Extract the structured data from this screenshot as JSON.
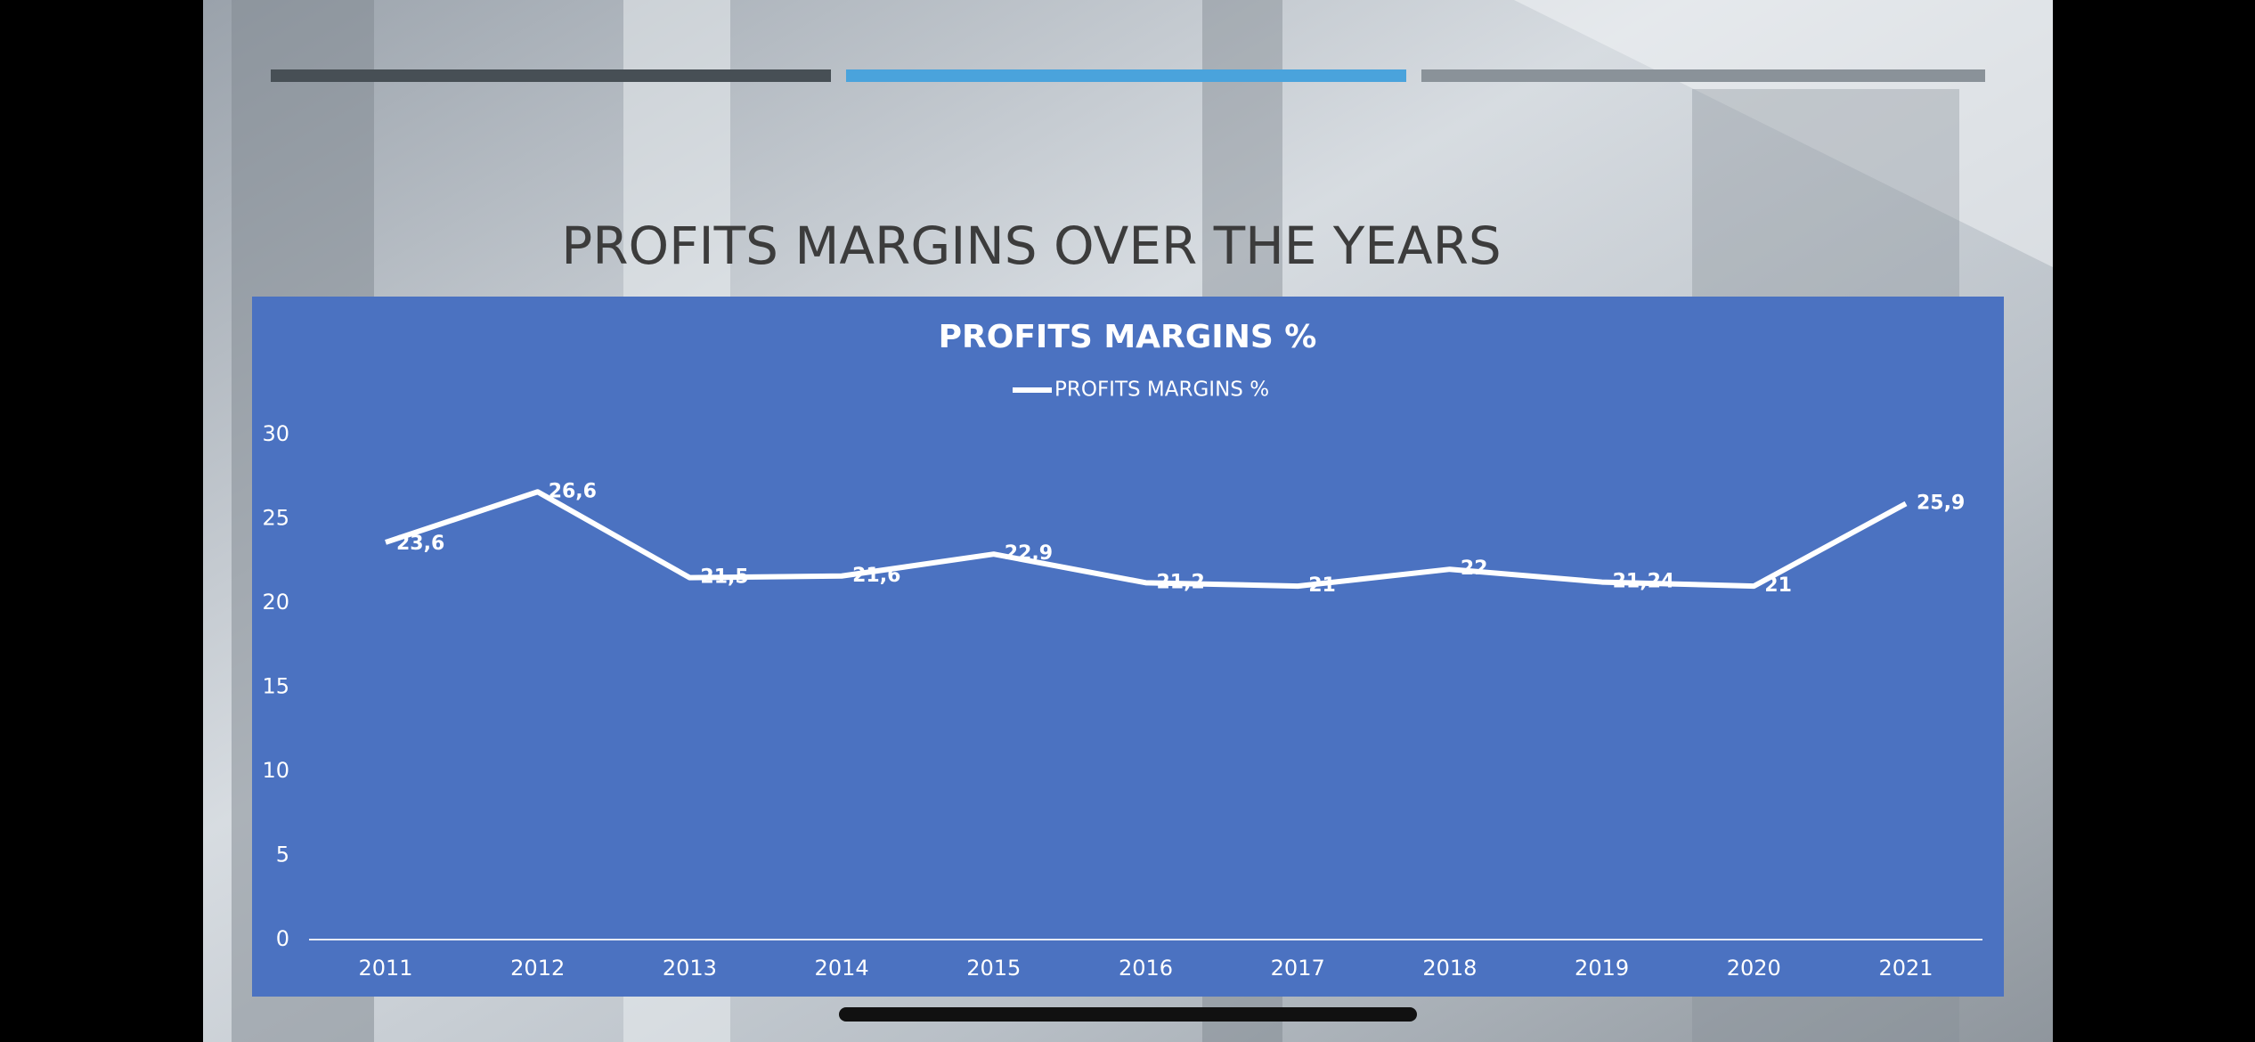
{
  "title": "PROFITS MARGINS OVER THE YEARS",
  "chart_data": {
    "type": "line",
    "title": "PROFITS MARGINS %",
    "categories": [
      "2011",
      "2012",
      "2013",
      "2014",
      "2015",
      "2016",
      "2017",
      "2018",
      "2019",
      "2020",
      "2021"
    ],
    "series": [
      {
        "name": "PROFITS MARGINS %",
        "color": "#ffffff",
        "values": [
          23.6,
          26.6,
          21.5,
          21.6,
          22.9,
          21.2,
          21,
          22,
          21.24,
          21,
          25.9
        ],
        "value_labels": [
          "23,6",
          "26,6",
          "21,5",
          "21,6",
          "22,9",
          "21,2",
          "21",
          "22",
          "21,24",
          "21",
          "25,9"
        ]
      }
    ],
    "ylim": [
      0,
      30
    ],
    "yticks": [
      0,
      5,
      10,
      15,
      20,
      25,
      30
    ],
    "grid": false,
    "legend": "top"
  }
}
